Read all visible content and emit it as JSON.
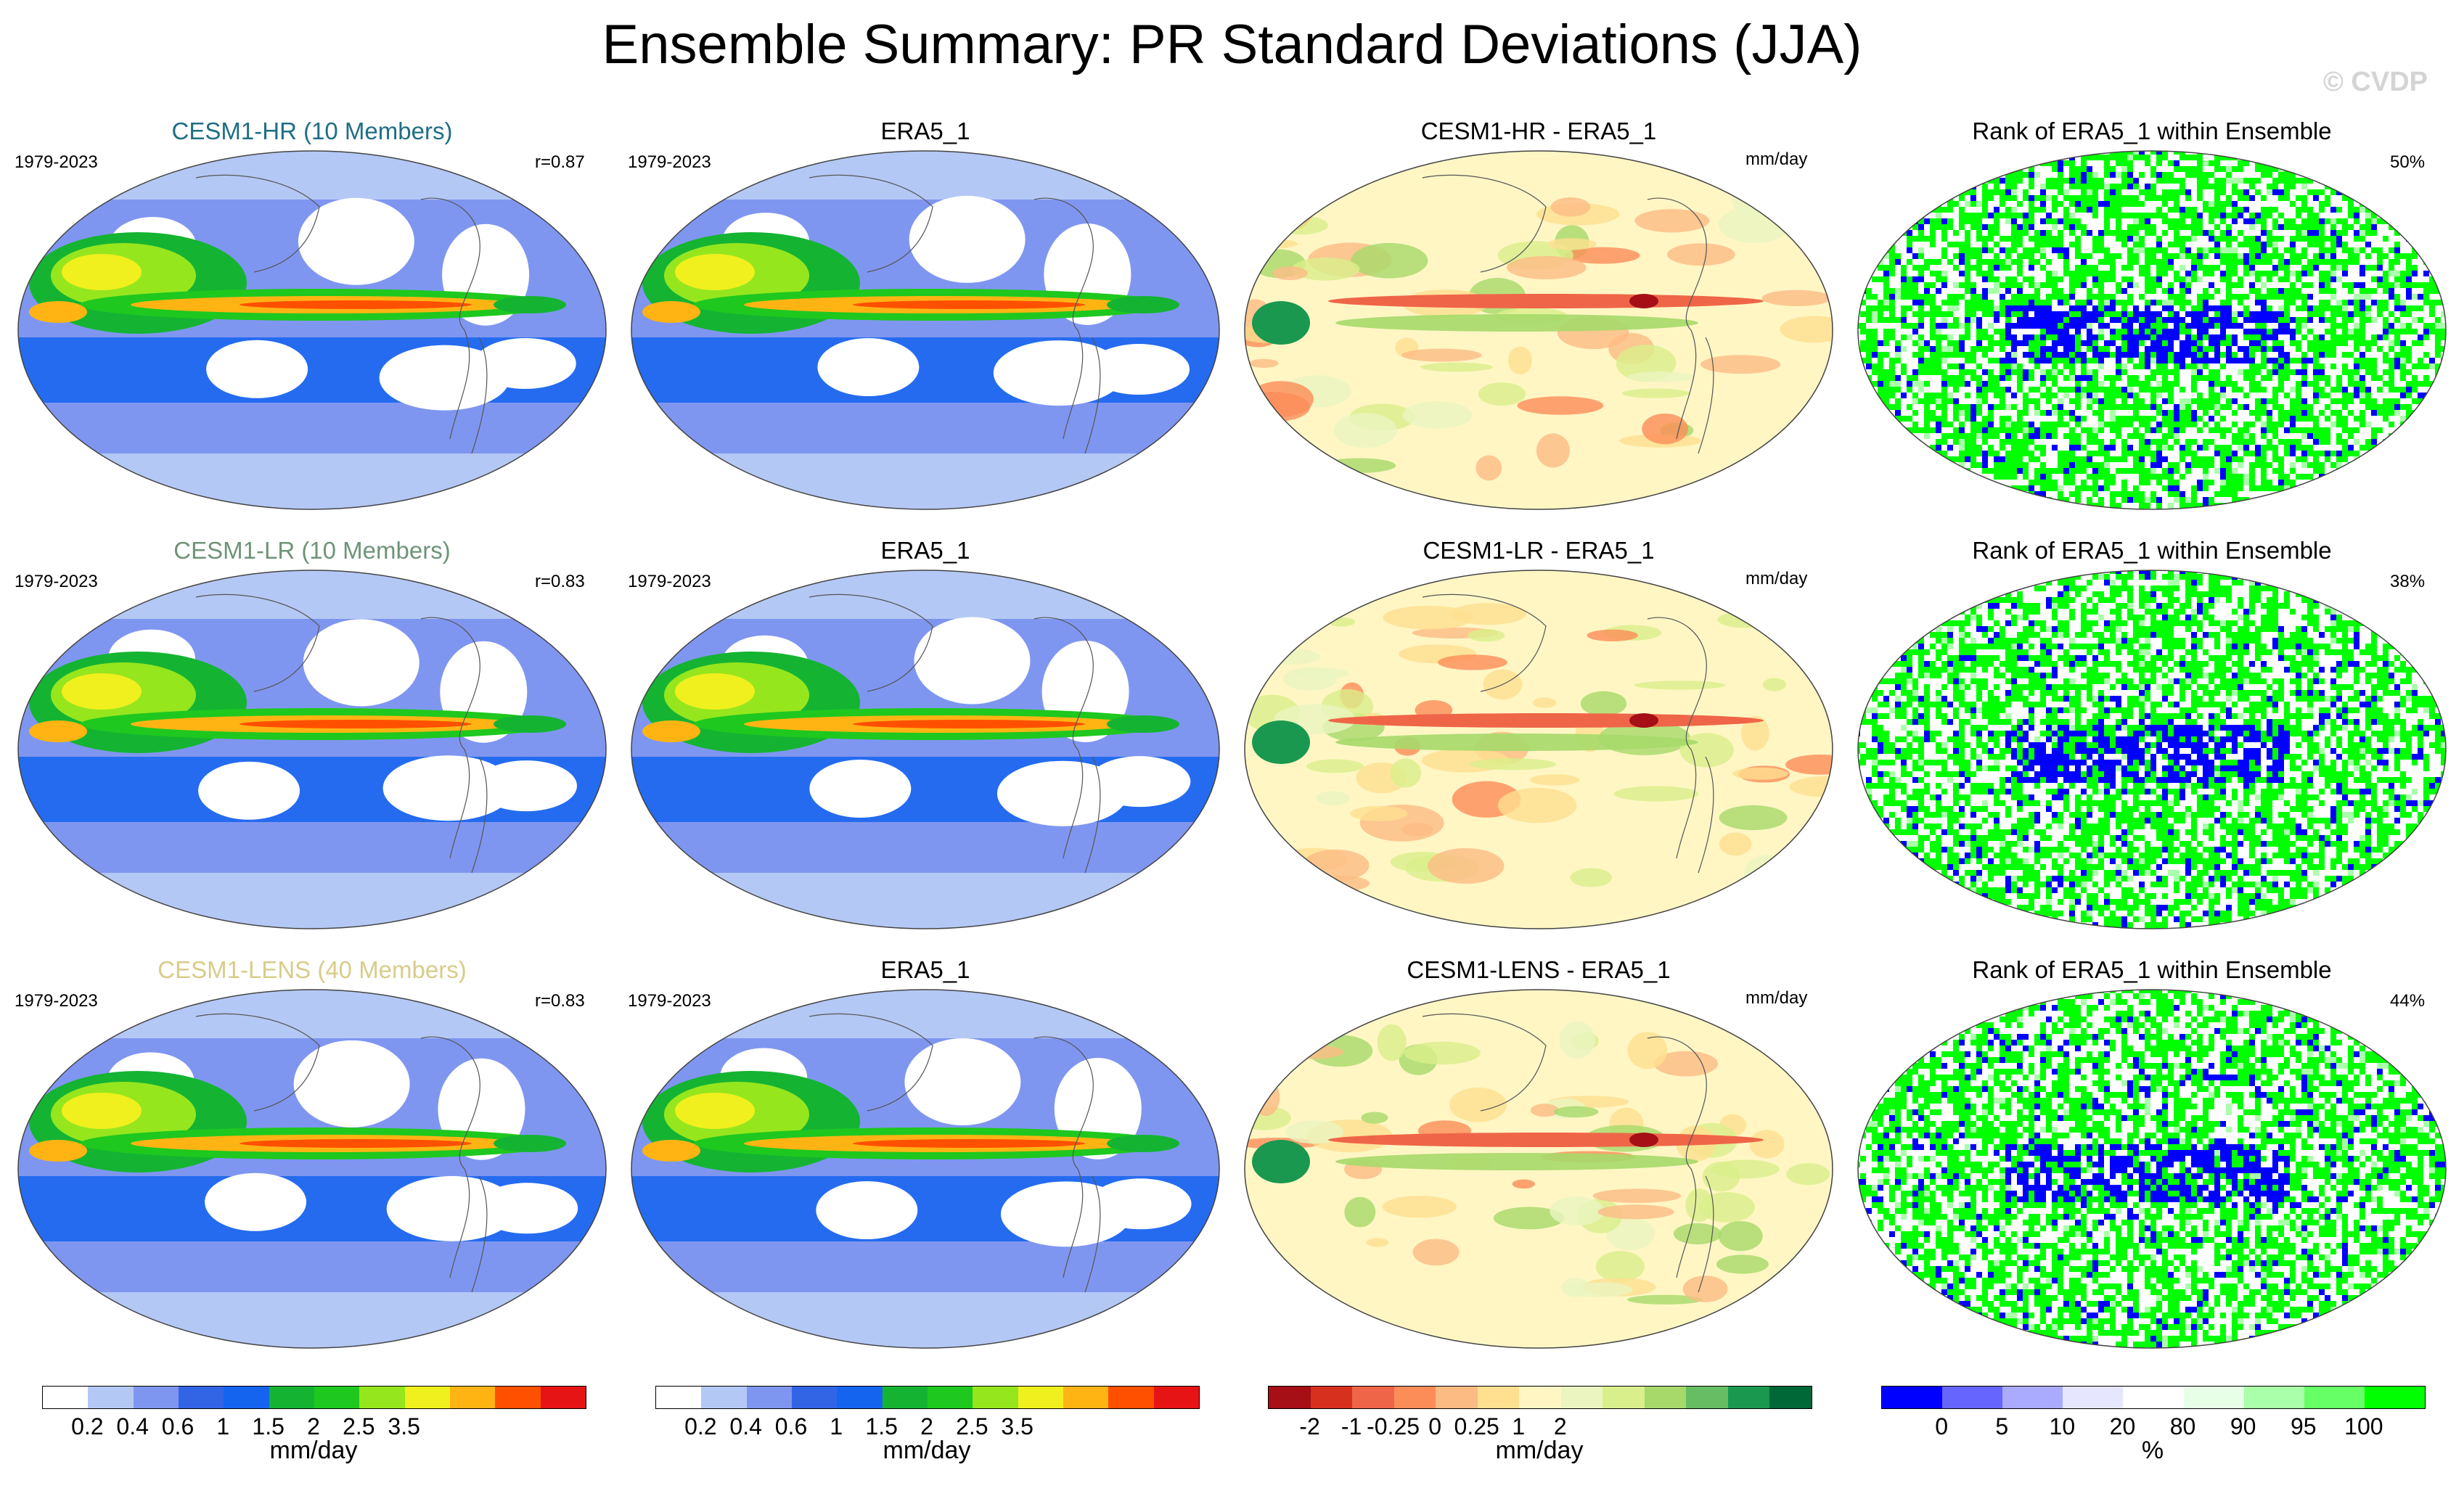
{
  "title": "Ensemble Summary: PR Standard Deviations (JJA)",
  "watermark": "© CVDP",
  "colors": {
    "std": [
      "#ffffff",
      "#b4c8f5",
      "#7f96f0",
      "#3264e6",
      "#1464f0",
      "#14b432",
      "#1ec81e",
      "#96e61e",
      "#f0f01e",
      "#ffb414",
      "#ff5000",
      "#e61414"
    ],
    "diff": [
      "#a50f15",
      "#d7301f",
      "#ef6548",
      "#fc8d59",
      "#fdbb84",
      "#fee090",
      "#fff6c4",
      "#eaf5c0",
      "#d9ef8b",
      "#a6d96a",
      "#66bd63",
      "#1a9850",
      "#006837"
    ],
    "rank": [
      "#0000ff",
      "#6666ff",
      "#aaaaff",
      "#e6e6ff",
      "#ffffff",
      "#e6ffe6",
      "#aaffaa",
      "#66ff66",
      "#00ff00"
    ]
  },
  "rows": [
    {
      "model_title": "CESM1-HR (10 Members)",
      "model_title_color": "#1f6f86",
      "years": "1979-2023",
      "corr": "r=0.87",
      "obs_title": "ERA5_1",
      "obs_years": "1979-2023",
      "diff_title": "CESM1-HR - ERA5_1",
      "diff_units": "mm/day",
      "rank_title": "Rank of ERA5_1 within Ensemble",
      "rank_pct": "50%"
    },
    {
      "model_title": "CESM1-LR (10 Members)",
      "model_title_color": "#6f9478",
      "years": "1979-2023",
      "corr": "r=0.83",
      "obs_title": "ERA5_1",
      "obs_years": "1979-2023",
      "diff_title": "CESM1-LR - ERA5_1",
      "diff_units": "mm/day",
      "rank_title": "Rank of ERA5_1 within Ensemble",
      "rank_pct": "38%"
    },
    {
      "model_title": "CESM1-LENS (40 Members)",
      "model_title_color": "#d8cc8a",
      "years": "1979-2023",
      "corr": "r=0.83",
      "obs_title": "ERA5_1",
      "obs_years": "1979-2023",
      "diff_title": "CESM1-LENS - ERA5_1",
      "diff_units": "mm/day",
      "rank_title": "Rank of ERA5_1 within Ensemble",
      "rank_pct": "44%"
    }
  ],
  "colorbars": {
    "std_ticks": [
      "0.2",
      "0.4",
      "0.6",
      "1",
      "1.5",
      "2",
      "2.5",
      "3.5"
    ],
    "std_units": "mm/day",
    "diff_ticks": [
      "-2",
      "-1",
      "-0.25",
      "0",
      "0.25",
      "1",
      "2"
    ],
    "diff_units": "mm/day",
    "rank_ticks": [
      "0",
      "5",
      "10",
      "20",
      "80",
      "90",
      "95",
      "100"
    ],
    "rank_units": "%"
  }
}
